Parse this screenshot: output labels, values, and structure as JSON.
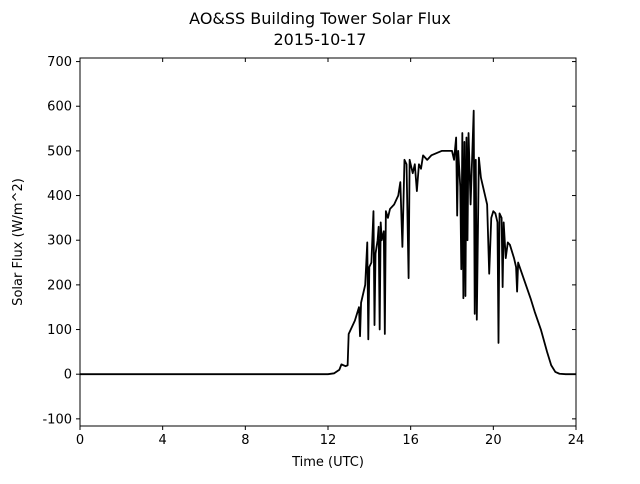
{
  "chart_data": {
    "type": "line",
    "title": "AO&SS Building Tower Solar Flux",
    "subtitle": "2015-10-17",
    "x_label": "Time (UTC)",
    "y_label": "Solar Flux (W/m^2)",
    "xlim": [
      0,
      24
    ],
    "xticks": [
      0,
      4,
      8,
      12,
      16,
      20,
      24
    ],
    "ylim": [
      -116,
      708
    ],
    "yticks": [
      -100,
      0,
      100,
      200,
      300,
      400,
      500,
      600,
      700
    ],
    "grid": false,
    "series": [
      {
        "color": "#000000",
        "x": [
          0,
          12,
          12.3,
          12.55,
          12.65,
          12.85,
          12.95,
          13.0,
          13.3,
          13.5,
          13.55,
          13.6,
          13.8,
          13.9,
          13.95,
          14.0,
          14.1,
          14.2,
          14.25,
          14.3,
          14.4,
          14.45,
          14.5,
          14.55,
          14.6,
          14.7,
          14.75,
          14.8,
          14.9,
          15.0,
          15.2,
          15.4,
          15.5,
          15.6,
          15.7,
          15.8,
          15.9,
          15.95,
          16.1,
          16.2,
          16.3,
          16.4,
          16.5,
          16.6,
          16.8,
          17.0,
          17.5,
          18.0,
          18.1,
          18.2,
          18.25,
          18.3,
          18.4,
          18.45,
          18.5,
          18.55,
          18.6,
          18.65,
          18.7,
          18.75,
          18.8,
          18.9,
          19.0,
          19.05,
          19.1,
          19.15,
          19.2,
          19.3,
          19.4,
          19.5,
          19.6,
          19.7,
          19.8,
          19.9,
          20.0,
          20.1,
          20.2,
          20.25,
          20.3,
          20.4,
          20.45,
          20.5,
          20.6,
          20.7,
          20.8,
          21.0,
          21.1,
          21.15,
          21.2,
          21.5,
          21.8,
          22.0,
          22.3,
          22.6,
          22.8,
          23.0,
          23.2,
          23.5,
          24
        ],
        "values": [
          0,
          0,
          2,
          10,
          22,
          18,
          20,
          90,
          120,
          150,
          85,
          160,
          200,
          295,
          78,
          240,
          250,
          365,
          110,
          270,
          300,
          330,
          100,
          340,
          300,
          320,
          90,
          365,
          350,
          370,
          380,
          400,
          430,
          285,
          480,
          470,
          215,
          480,
          450,
          470,
          410,
          470,
          460,
          490,
          480,
          490,
          500,
          500,
          480,
          530,
          355,
          500,
          420,
          235,
          540,
          170,
          520,
          175,
          530,
          300,
          540,
          380,
          520,
          590,
          135,
          480,
          122,
          485,
          440,
          420,
          400,
          380,
          225,
          350,
          365,
          360,
          340,
          70,
          360,
          350,
          195,
          340,
          260,
          295,
          290,
          260,
          240,
          185,
          250,
          210,
          170,
          140,
          100,
          50,
          20,
          5,
          1,
          0,
          0
        ]
      }
    ]
  }
}
